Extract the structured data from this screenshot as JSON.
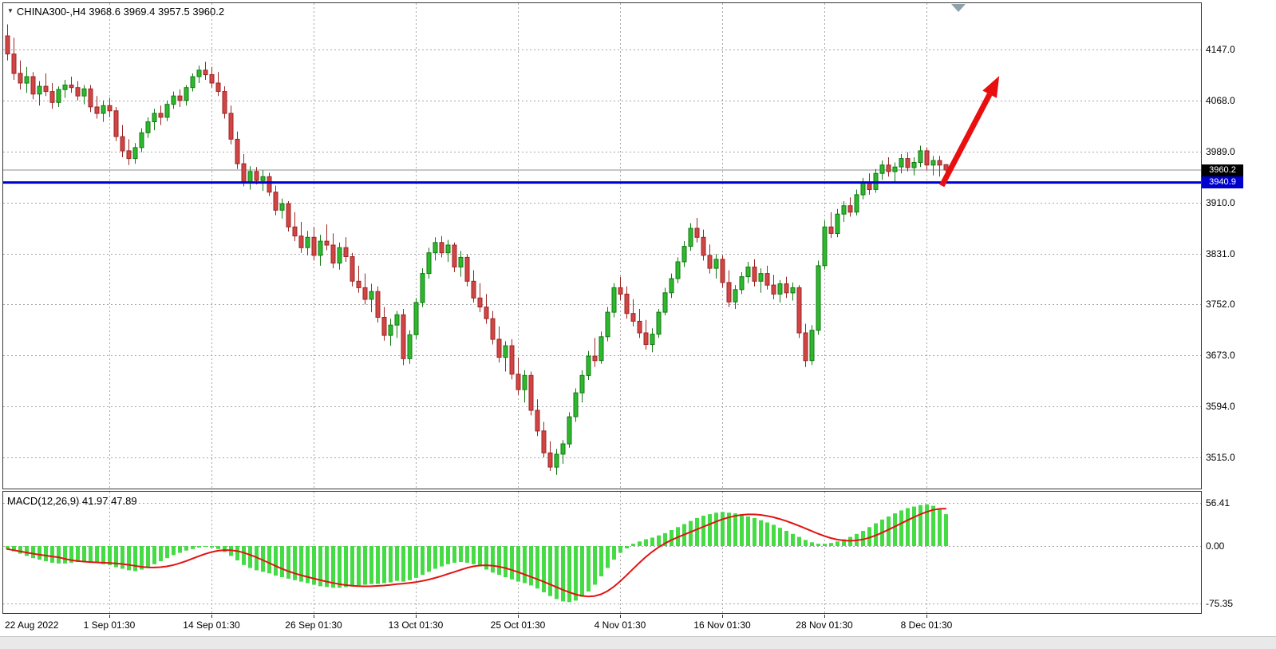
{
  "window": {
    "dropdown_icon": "▼",
    "symbol_label": "CHINA300-,H4  3968.6 3969.4 3957.5 3960.2",
    "macd_label": "MACD(12,26,9) 41.97 47.89"
  },
  "colors": {
    "up_fill": "#2eb82e",
    "up_edge": "#117a11",
    "down_fill": "#d14545",
    "down_edge": "#9c2525",
    "macd_bar": "#45db45",
    "signal_line": "#e31212",
    "support_line": "#0000cd",
    "current_price_line": "#8c8c8c",
    "grid": "#a6a6a6",
    "arrow": "#ea0f0f",
    "marker": "#8fa0ab",
    "badge_current_bg": "#000000",
    "badge_line_bg": "#0000cd"
  },
  "chart_data": {
    "type": "candlestick",
    "symbol": "CHINA300-",
    "timeframe": "H4",
    "last_ohlc": {
      "open": 3968.6,
      "high": 3969.4,
      "low": 3957.5,
      "close": 3960.2
    },
    "current_price": 3960.2,
    "current_price_label": "3960.2",
    "hline_price": 3940.9,
    "hline_price_label": "3940.9",
    "price_axis_labels": [
      4147.0,
      4068.0,
      3989.0,
      3910.0,
      3831.0,
      3752.0,
      3673.0,
      3594.0,
      3515.0
    ],
    "x_axis_labels": [
      {
        "text": "22 Aug 2022",
        "index": 0,
        "grid": false
      },
      {
        "text": "1 Sep 01:30",
        "index": 16,
        "grid": true
      },
      {
        "text": "14 Sep 01:30",
        "index": 32,
        "grid": true
      },
      {
        "text": "26 Sep 01:30",
        "index": 48,
        "grid": true
      },
      {
        "text": "13 Oct 01:30",
        "index": 64,
        "grid": true
      },
      {
        "text": "25 Oct 01:30",
        "index": 80,
        "grid": true
      },
      {
        "text": "4 Nov 01:30",
        "index": 96,
        "grid": true
      },
      {
        "text": "16 Nov 01:30",
        "index": 112,
        "grid": true
      },
      {
        "text": "28 Nov 01:30",
        "index": 128,
        "grid": true
      },
      {
        "text": "8 Dec 01:30",
        "index": 144,
        "grid": true
      }
    ],
    "candles_ohlc": [
      [
        4168,
        4186,
        4130,
        4140
      ],
      [
        4140,
        4165,
        4100,
        4110
      ],
      [
        4110,
        4130,
        4085,
        4095
      ],
      [
        4095,
        4120,
        4080,
        4105
      ],
      [
        4105,
        4112,
        4070,
        4078
      ],
      [
        4078,
        4098,
        4060,
        4090
      ],
      [
        4090,
        4110,
        4075,
        4082
      ],
      [
        4082,
        4095,
        4055,
        4065
      ],
      [
        4065,
        4090,
        4058,
        4085
      ],
      [
        4085,
        4100,
        4072,
        4092
      ],
      [
        4092,
        4105,
        4080,
        4088
      ],
      [
        4088,
        4098,
        4068,
        4075
      ],
      [
        4075,
        4092,
        4062,
        4086
      ],
      [
        4086,
        4092,
        4050,
        4058
      ],
      [
        4058,
        4075,
        4040,
        4048
      ],
      [
        4048,
        4068,
        4035,
        4060
      ],
      [
        4060,
        4072,
        4042,
        4052
      ],
      [
        4052,
        4058,
        4005,
        4012
      ],
      [
        4012,
        4030,
        3980,
        3990
      ],
      [
        3990,
        4008,
        3968,
        3978
      ],
      [
        3978,
        4002,
        3970,
        3995
      ],
      [
        3995,
        4025,
        3988,
        4018
      ],
      [
        4018,
        4042,
        4010,
        4035
      ],
      [
        4035,
        4055,
        4022,
        4048
      ],
      [
        4048,
        4060,
        4030,
        4042
      ],
      [
        4042,
        4068,
        4036,
        4062
      ],
      [
        4062,
        4082,
        4055,
        4075
      ],
      [
        4075,
        4085,
        4058,
        4068
      ],
      [
        4068,
        4092,
        4060,
        4088
      ],
      [
        4088,
        4110,
        4082,
        4105
      ],
      [
        4105,
        4122,
        4095,
        4115
      ],
      [
        4115,
        4128,
        4100,
        4108
      ],
      [
        4108,
        4120,
        4088,
        4095
      ],
      [
        4095,
        4112,
        4075,
        4082
      ],
      [
        4082,
        4090,
        4040,
        4048
      ],
      [
        4048,
        4060,
        4000,
        4008
      ],
      [
        4008,
        4020,
        3962,
        3970
      ],
      [
        3970,
        3985,
        3935,
        3942
      ],
      [
        3942,
        3966,
        3930,
        3958
      ],
      [
        3958,
        3965,
        3938,
        3944
      ],
      [
        3944,
        3960,
        3928,
        3950
      ],
      [
        3950,
        3956,
        3920,
        3926
      ],
      [
        3926,
        3936,
        3890,
        3898
      ],
      [
        3898,
        3916,
        3885,
        3908
      ],
      [
        3908,
        3912,
        3865,
        3872
      ],
      [
        3872,
        3895,
        3850,
        3858
      ],
      [
        3858,
        3880,
        3832,
        3840
      ],
      [
        3840,
        3866,
        3828,
        3856
      ],
      [
        3856,
        3872,
        3820,
        3828
      ],
      [
        3828,
        3860,
        3812,
        3850
      ],
      [
        3850,
        3876,
        3836,
        3844
      ],
      [
        3844,
        3862,
        3808,
        3816
      ],
      [
        3816,
        3848,
        3806,
        3840
      ],
      [
        3840,
        3856,
        3818,
        3826
      ],
      [
        3826,
        3832,
        3780,
        3788
      ],
      [
        3788,
        3812,
        3770,
        3778
      ],
      [
        3778,
        3800,
        3752,
        3760
      ],
      [
        3760,
        3784,
        3740,
        3772
      ],
      [
        3772,
        3780,
        3724,
        3732
      ],
      [
        3732,
        3748,
        3696,
        3704
      ],
      [
        3704,
        3730,
        3688,
        3720
      ],
      [
        3720,
        3742,
        3700,
        3736
      ],
      [
        3736,
        3745,
        3658,
        3668
      ],
      [
        3668,
        3712,
        3660,
        3705
      ],
      [
        3705,
        3762,
        3698,
        3755
      ],
      [
        3755,
        3808,
        3748,
        3800
      ],
      [
        3800,
        3840,
        3792,
        3832
      ],
      [
        3832,
        3856,
        3820,
        3848
      ],
      [
        3848,
        3858,
        3825,
        3832
      ],
      [
        3832,
        3852,
        3818,
        3844
      ],
      [
        3844,
        3848,
        3802,
        3810
      ],
      [
        3810,
        3835,
        3795,
        3825
      ],
      [
        3825,
        3830,
        3780,
        3788
      ],
      [
        3788,
        3805,
        3755,
        3762
      ],
      [
        3762,
        3785,
        3740,
        3748
      ],
      [
        3748,
        3768,
        3722,
        3730
      ],
      [
        3730,
        3742,
        3690,
        3698
      ],
      [
        3698,
        3718,
        3662,
        3670
      ],
      [
        3670,
        3695,
        3648,
        3688
      ],
      [
        3688,
        3698,
        3636,
        3644
      ],
      [
        3644,
        3670,
        3612,
        3620
      ],
      [
        3620,
        3650,
        3600,
        3642
      ],
      [
        3642,
        3648,
        3580,
        3588
      ],
      [
        3588,
        3605,
        3548,
        3556
      ],
      [
        3556,
        3570,
        3515,
        3522
      ],
      [
        3522,
        3540,
        3494,
        3500
      ],
      [
        3500,
        3528,
        3488,
        3520
      ],
      [
        3520,
        3542,
        3505,
        3536
      ],
      [
        3536,
        3585,
        3530,
        3578
      ],
      [
        3578,
        3622,
        3570,
        3615
      ],
      [
        3615,
        3650,
        3600,
        3642
      ],
      [
        3642,
        3680,
        3635,
        3672
      ],
      [
        3672,
        3700,
        3655,
        3665
      ],
      [
        3665,
        3710,
        3660,
        3702
      ],
      [
        3702,
        3748,
        3695,
        3740
      ],
      [
        3740,
        3785,
        3732,
        3778
      ],
      [
        3778,
        3795,
        3758,
        3768
      ],
      [
        3768,
        3780,
        3730,
        3738
      ],
      [
        3738,
        3760,
        3718,
        3726
      ],
      [
        3726,
        3745,
        3700,
        3708
      ],
      [
        3708,
        3728,
        3682,
        3690
      ],
      [
        3690,
        3715,
        3678,
        3706
      ],
      [
        3706,
        3745,
        3700,
        3740
      ],
      [
        3740,
        3778,
        3735,
        3770
      ],
      [
        3770,
        3800,
        3762,
        3792
      ],
      [
        3792,
        3825,
        3785,
        3818
      ],
      [
        3818,
        3850,
        3810,
        3842
      ],
      [
        3842,
        3878,
        3835,
        3870
      ],
      [
        3870,
        3886,
        3848,
        3856
      ],
      [
        3856,
        3868,
        3820,
        3828
      ],
      [
        3828,
        3845,
        3800,
        3808
      ],
      [
        3808,
        3830,
        3792,
        3822
      ],
      [
        3822,
        3828,
        3778,
        3786
      ],
      [
        3786,
        3805,
        3748,
        3756
      ],
      [
        3756,
        3782,
        3745,
        3775
      ],
      [
        3775,
        3802,
        3768,
        3795
      ],
      [
        3795,
        3818,
        3785,
        3810
      ],
      [
        3810,
        3822,
        3780,
        3788
      ],
      [
        3788,
        3808,
        3770,
        3800
      ],
      [
        3800,
        3812,
        3775,
        3782
      ],
      [
        3782,
        3798,
        3760,
        3768
      ],
      [
        3768,
        3790,
        3755,
        3784
      ],
      [
        3784,
        3795,
        3762,
        3770
      ],
      [
        3770,
        3786,
        3758,
        3778
      ],
      [
        3778,
        3782,
        3700,
        3708
      ],
      [
        3708,
        3722,
        3655,
        3665
      ],
      [
        3665,
        3720,
        3658,
        3712
      ],
      [
        3712,
        3820,
        3705,
        3812
      ],
      [
        3812,
        3882,
        3806,
        3872
      ],
      [
        3872,
        3895,
        3855,
        3862
      ],
      [
        3862,
        3900,
        3856,
        3892
      ],
      [
        3892,
        3912,
        3880,
        3905
      ],
      [
        3905,
        3918,
        3888,
        3895
      ],
      [
        3895,
        3930,
        3890,
        3922
      ],
      [
        3922,
        3948,
        3915,
        3940
      ],
      [
        3940,
        3955,
        3922,
        3930
      ],
      [
        3930,
        3962,
        3925,
        3955
      ],
      [
        3955,
        3975,
        3945,
        3968
      ],
      [
        3968,
        3980,
        3950,
        3958
      ],
      [
        3958,
        3972,
        3940,
        3965
      ],
      [
        3965,
        3985,
        3955,
        3978
      ],
      [
        3978,
        3988,
        3958,
        3964
      ],
      [
        3964,
        3980,
        3952,
        3972
      ],
      [
        3972,
        3998,
        3965,
        3990
      ],
      [
        3990,
        3995,
        3960,
        3968
      ],
      [
        3968,
        3982,
        3952,
        3975
      ],
      [
        3975,
        3982,
        3950,
        3968
      ],
      [
        3968.6,
        3969.4,
        3957.5,
        3960.2
      ]
    ],
    "macd": {
      "label_params": "12,26,9",
      "macd_value": 41.97,
      "signal_value": 47.89,
      "axis_labels": [
        "56.41",
        "0.00",
        "-75.35"
      ],
      "histogram": [
        -4,
        -7,
        -10,
        -13,
        -16,
        -18,
        -20,
        -22,
        -23,
        -23,
        -22,
        -21,
        -20,
        -21,
        -22,
        -24,
        -25,
        -28,
        -30,
        -32,
        -33,
        -31,
        -28,
        -24,
        -20,
        -16,
        -12,
        -9,
        -6,
        -4,
        -2,
        -1,
        -2,
        -4,
        -8,
        -13,
        -19,
        -25,
        -29,
        -32,
        -34,
        -36,
        -39,
        -41,
        -43,
        -45,
        -47,
        -49,
        -51,
        -53,
        -54,
        -55,
        -55,
        -54,
        -53,
        -52,
        -51,
        -50,
        -50,
        -49,
        -48,
        -46,
        -47,
        -45,
        -42,
        -38,
        -34,
        -30,
        -27,
        -24,
        -22,
        -21,
        -22,
        -24,
        -27,
        -31,
        -35,
        -38,
        -41,
        -44,
        -47,
        -49,
        -52,
        -56,
        -61,
        -66,
        -70,
        -73,
        -74,
        -72,
        -67,
        -60,
        -51,
        -40,
        -29,
        -18,
        -9,
        -3,
        3,
        6,
        9,
        11,
        14,
        17,
        21,
        25,
        29,
        33,
        37,
        40,
        42,
        44,
        45,
        44,
        43,
        41,
        39,
        37,
        34,
        31,
        28,
        24,
        20,
        16,
        12,
        8,
        5,
        3,
        3,
        4,
        6,
        9,
        12,
        16,
        20,
        25,
        30,
        35,
        39,
        43,
        47,
        50,
        52,
        54,
        55,
        53,
        48,
        42
      ]
    },
    "annotations": {
      "trend_arrow": {
        "from": {
          "index": 146.4,
          "price": 3936
        },
        "to": {
          "index": 155.4,
          "price": 4106
        }
      },
      "top_marker": {
        "index": 149
      }
    }
  }
}
